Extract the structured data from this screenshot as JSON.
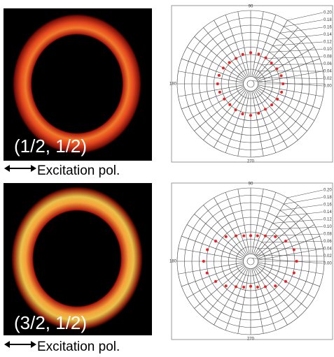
{
  "panels": [
    {
      "label": "(1/2, 1/2)",
      "caption": "Excitation pol."
    },
    {
      "label": "(3/2, 1/2)",
      "caption": "Excitation pol."
    }
  ],
  "chart_data": [
    {
      "type": "polar-scatter",
      "color": "#e8231e",
      "theta": [
        0,
        15,
        30,
        45,
        60,
        75,
        90,
        105,
        120,
        135,
        150,
        165,
        180,
        195,
        210,
        225,
        240,
        255,
        270,
        285,
        300,
        315,
        330,
        345
      ],
      "r": [
        0.088,
        0.086,
        0.082,
        0.08,
        0.082,
        0.084,
        0.085,
        0.083,
        0.08,
        0.082,
        0.086,
        0.089,
        0.09,
        0.087,
        0.083,
        0.08,
        0.082,
        0.085,
        0.086,
        0.083,
        0.08,
        0.081,
        0.084,
        0.087
      ],
      "rlim": [
        0,
        0.2
      ],
      "rticks": [
        {
          "value": 0.2,
          "label": "0.20"
        },
        {
          "value": 0.18,
          "label": "0.18"
        },
        {
          "value": 0.16,
          "label": "0.16"
        },
        {
          "value": 0.14,
          "label": "0.14"
        },
        {
          "value": 0.12,
          "label": "0.12"
        },
        {
          "value": 0.1,
          "label": "0.10"
        },
        {
          "value": 0.08,
          "label": "0.08"
        },
        {
          "value": 0.06,
          "label": "0.06"
        },
        {
          "value": 0.04,
          "label": "0.04"
        },
        {
          "value": 0.02,
          "label": "0.02"
        },
        {
          "value": 0,
          "label": "0.00"
        }
      ],
      "thetaticks": [
        90,
        180,
        270
      ]
    },
    {
      "type": "polar-scatter",
      "color": "#e8231e",
      "theta": [
        0,
        15,
        30,
        45,
        60,
        75,
        90,
        105,
        120,
        135,
        150,
        165,
        180,
        195,
        210,
        225,
        240,
        255,
        270,
        285,
        300,
        315,
        330,
        345
      ],
      "r": [
        0.125,
        0.122,
        0.11,
        0.095,
        0.08,
        0.072,
        0.07,
        0.072,
        0.08,
        0.095,
        0.11,
        0.122,
        0.128,
        0.123,
        0.11,
        0.095,
        0.08,
        0.073,
        0.068,
        0.073,
        0.08,
        0.095,
        0.11,
        0.122
      ],
      "rlim": [
        0,
        0.2
      ],
      "rticks": [
        {
          "value": 0.2,
          "label": "0.20"
        },
        {
          "value": 0.18,
          "label": "0.18"
        },
        {
          "value": 0.16,
          "label": "0.16"
        },
        {
          "value": 0.14,
          "label": "0.14"
        },
        {
          "value": 0.12,
          "label": "0.12"
        },
        {
          "value": 0.1,
          "label": "0.10"
        },
        {
          "value": 0.08,
          "label": "0.08"
        },
        {
          "value": 0.06,
          "label": "0.06"
        },
        {
          "value": 0.04,
          "label": "0.04"
        },
        {
          "value": 0.02,
          "label": "0.02"
        },
        {
          "value": 0,
          "label": "0.00"
        }
      ],
      "thetaticks": [
        90,
        180,
        270
      ]
    }
  ]
}
